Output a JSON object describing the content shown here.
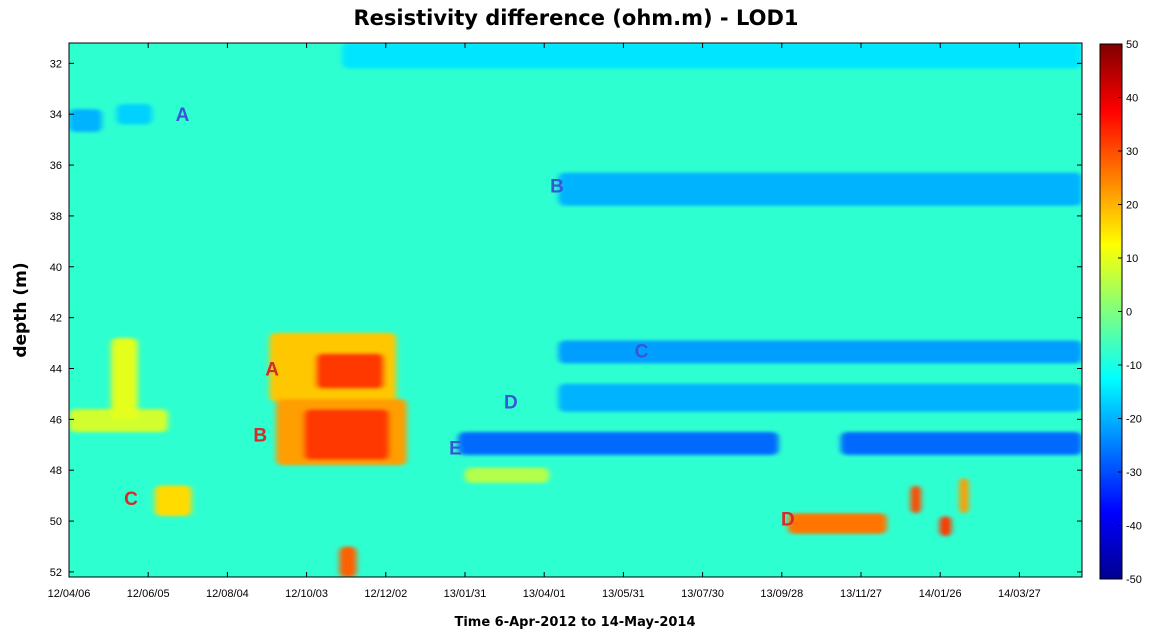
{
  "chart_data": {
    "type": "heatmap",
    "title": "Resistivity difference (ohm.m) - LOD1",
    "xlabel": "Time 6-Apr-2012 to 14-May-2014",
    "ylabel": "depth (m)",
    "x_ticks": [
      "12/04/06",
      "12/06/05",
      "12/08/04",
      "12/10/03",
      "12/12/02",
      "13/01/31",
      "13/04/01",
      "13/05/31",
      "13/07/30",
      "13/09/28",
      "13/11/27",
      "14/01/26",
      "14/03/27"
    ],
    "x_range": [
      "2012-04-06",
      "2014-05-14"
    ],
    "y_ticks": [
      32,
      34,
      36,
      38,
      40,
      42,
      44,
      46,
      48,
      50,
      52
    ],
    "y_range": [
      31.2,
      52.2
    ],
    "y_reversed": true,
    "colorbar": {
      "ticks": [
        50,
        40,
        30,
        20,
        10,
        0,
        -10,
        -20,
        -30,
        -40,
        -50
      ],
      "min": -50,
      "max": 50,
      "colormap": "jet"
    },
    "background_value": -8,
    "features": [
      {
        "x_start": "2012-04-06",
        "x_end": "2012-05-01",
        "y_start": 33.8,
        "y_end": 34.7,
        "value": -20
      },
      {
        "x_start": "2012-05-12",
        "x_end": "2012-06-08",
        "y_start": 33.6,
        "y_end": 34.4,
        "value": -17
      },
      {
        "x_start": "2012-10-30",
        "x_end": "2014-05-14",
        "y_start": 31.2,
        "y_end": 32.2,
        "value": -15
      },
      {
        "x_start": "2013-04-12",
        "x_end": "2014-05-14",
        "y_start": 36.3,
        "y_end": 37.6,
        "value": -20
      },
      {
        "x_start": "2012-09-05",
        "x_end": "2012-12-10",
        "y_start": 42.6,
        "y_end": 45.3,
        "value": 18
      },
      {
        "x_start": "2012-10-10",
        "x_end": "2012-12-01",
        "y_start": 43.4,
        "y_end": 44.8,
        "value": 32
      },
      {
        "x_start": "2012-09-10",
        "x_end": "2012-12-18",
        "y_start": 45.2,
        "y_end": 47.8,
        "value": 22
      },
      {
        "x_start": "2012-10-01",
        "x_end": "2012-12-05",
        "y_start": 45.6,
        "y_end": 47.6,
        "value": 32
      },
      {
        "x_start": "2012-04-06",
        "x_end": "2012-06-20",
        "y_start": 45.6,
        "y_end": 46.5,
        "value": 8
      },
      {
        "x_start": "2012-05-08",
        "x_end": "2012-05-28",
        "y_start": 42.8,
        "y_end": 46.0,
        "value": 10
      },
      {
        "x_start": "2012-06-10",
        "x_end": "2012-07-08",
        "y_start": 48.6,
        "y_end": 49.8,
        "value": 16
      },
      {
        "x_start": "2012-10-28",
        "x_end": "2012-11-10",
        "y_start": 51.0,
        "y_end": 52.2,
        "value": 28
      },
      {
        "x_start": "2013-01-31",
        "x_end": "2013-04-05",
        "y_start": 47.9,
        "y_end": 48.5,
        "value": 5
      },
      {
        "x_start": "2013-04-12",
        "x_end": "2014-05-14",
        "y_start": 42.9,
        "y_end": 43.8,
        "value": -22
      },
      {
        "x_start": "2013-04-12",
        "x_end": "2014-05-14",
        "y_start": 44.6,
        "y_end": 45.7,
        "value": -20
      },
      {
        "x_start": "2013-01-26",
        "x_end": "2013-09-26",
        "y_start": 46.5,
        "y_end": 47.4,
        "value": -27
      },
      {
        "x_start": "2013-11-12",
        "x_end": "2014-05-14",
        "y_start": 46.5,
        "y_end": 47.4,
        "value": -27
      },
      {
        "x_start": "2013-10-03",
        "x_end": "2013-12-17",
        "y_start": 49.7,
        "y_end": 50.5,
        "value": 26
      },
      {
        "x_start": "2014-01-04",
        "x_end": "2014-01-12",
        "y_start": 48.6,
        "y_end": 49.7,
        "value": 30
      },
      {
        "x_start": "2014-01-26",
        "x_end": "2014-02-04",
        "y_start": 49.8,
        "y_end": 50.6,
        "value": 32
      },
      {
        "x_start": "2014-02-10",
        "x_end": "2014-02-17",
        "y_start": 48.3,
        "y_end": 49.7,
        "value": 22
      }
    ],
    "annotations": [
      {
        "text": "A",
        "x": "2012-07-01",
        "y": 34.0,
        "color": "#3a56d4"
      },
      {
        "text": "B",
        "x": "2013-04-11",
        "y": 36.8,
        "color": "#3a56d4"
      },
      {
        "text": "C",
        "x": "2013-06-14",
        "y": 43.3,
        "color": "#3a56d4"
      },
      {
        "text": "D",
        "x": "2013-03-07",
        "y": 45.3,
        "color": "#3a56d4"
      },
      {
        "text": "E",
        "x": "2013-01-24",
        "y": 47.1,
        "color": "#3a56d4"
      },
      {
        "text": "A",
        "x": "2012-09-07",
        "y": 44.0,
        "color": "#d42a2a"
      },
      {
        "text": "B",
        "x": "2012-08-29",
        "y": 46.6,
        "color": "#d42a2a"
      },
      {
        "text": "C",
        "x": "2012-05-23",
        "y": 49.1,
        "color": "#d42a2a"
      },
      {
        "text": "D",
        "x": "2013-10-03",
        "y": 49.9,
        "color": "#d42a2a"
      }
    ]
  }
}
